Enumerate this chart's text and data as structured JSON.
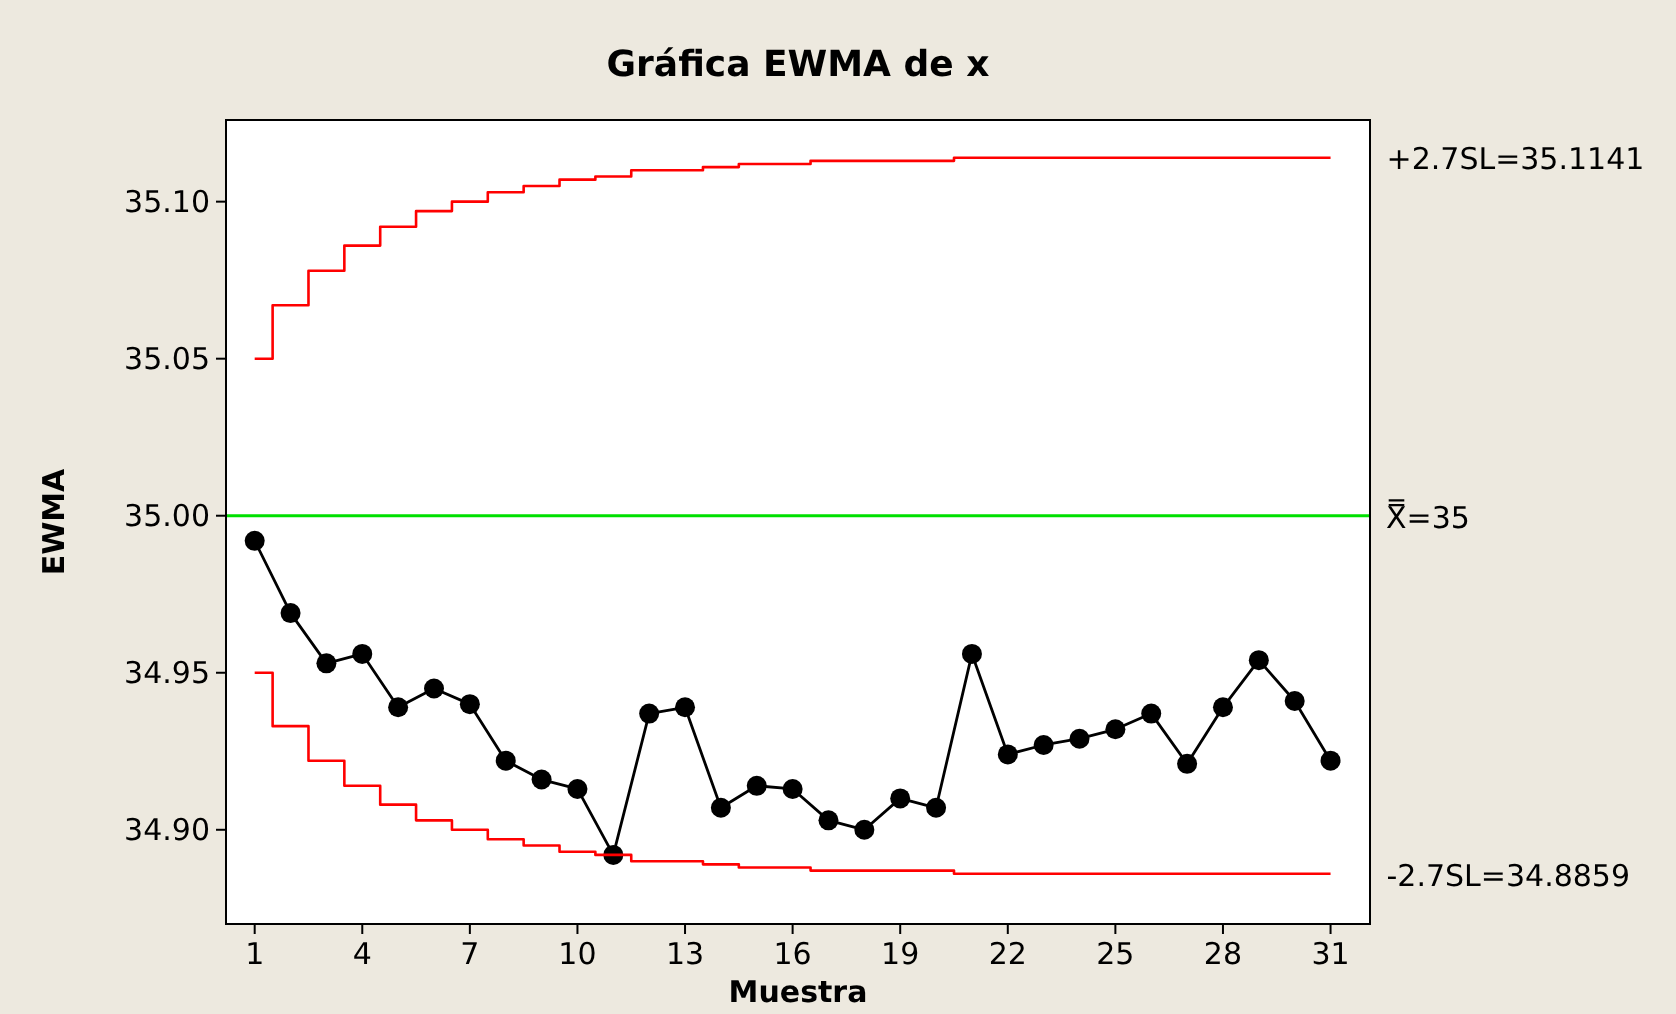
{
  "chart_data": {
    "type": "line",
    "title": "Gráfica EWMA de x",
    "xlabel": "Muestra",
    "ylabel": "EWMA",
    "x": [
      1,
      2,
      3,
      4,
      5,
      6,
      7,
      8,
      9,
      10,
      11,
      12,
      13,
      14,
      15,
      16,
      17,
      18,
      19,
      20,
      21,
      22,
      23,
      24,
      25,
      26,
      27,
      28,
      29,
      30,
      31
    ],
    "series": [
      {
        "color": "#000000",
        "marker": "circle",
        "values": [
          34.992,
          34.969,
          34.953,
          34.956,
          34.939,
          34.945,
          34.94,
          34.922,
          34.916,
          34.913,
          34.892,
          34.937,
          34.939,
          34.907,
          34.914,
          34.913,
          34.903,
          34.9,
          34.91,
          34.907,
          34.956,
          34.924,
          34.927,
          34.929,
          34.932,
          34.937,
          34.921,
          34.939,
          34.954,
          34.941,
          34.922
        ]
      },
      {
        "type": "step",
        "color": "#ff0000",
        "marker": "none",
        "values": [
          35.05,
          35.067,
          35.078,
          35.086,
          35.092,
          35.097,
          35.1,
          35.103,
          35.105,
          35.107,
          35.108,
          35.11,
          35.11,
          35.111,
          35.112,
          35.112,
          35.113,
          35.113,
          35.113,
          35.113,
          35.114,
          35.114,
          35.114,
          35.114,
          35.114,
          35.114,
          35.114,
          35.114,
          35.114,
          35.114,
          35.114
        ]
      },
      {
        "type": "step",
        "color": "#ff0000",
        "marker": "none",
        "values": [
          34.95,
          34.933,
          34.922,
          34.914,
          34.908,
          34.903,
          34.9,
          34.897,
          34.895,
          34.893,
          34.892,
          34.89,
          34.89,
          34.889,
          34.888,
          34.888,
          34.887,
          34.887,
          34.887,
          34.887,
          34.886,
          34.886,
          34.886,
          34.886,
          34.886,
          34.886,
          34.886,
          34.886,
          34.886,
          34.886,
          34.886
        ]
      }
    ],
    "ref_lines": [
      {
        "axis": "y",
        "value": 35,
        "label": "X̿=35",
        "color": "#00e000"
      }
    ],
    "annotations": [
      {
        "text": "+2.7SL=35.1141",
        "x": 31,
        "y": 35.1141
      },
      {
        "text": "-2.7SL=34.8859",
        "x": 31,
        "y": 34.8859
      }
    ],
    "xlim": [
      0.2,
      32.1
    ],
    "ylim": [
      34.87,
      35.126
    ],
    "xticks": [
      1,
      4,
      7,
      10,
      13,
      16,
      19,
      22,
      25,
      28,
      31
    ],
    "yticks": [
      {
        "value": 34.9,
        "label": "34.90"
      },
      {
        "value": 34.95,
        "label": "34.95"
      },
      {
        "value": 35,
        "label": "35.00"
      },
      {
        "value": 35.05,
        "label": "35.05"
      },
      {
        "value": 35.1,
        "label": "35.10"
      }
    ],
    "grid": false
  }
}
